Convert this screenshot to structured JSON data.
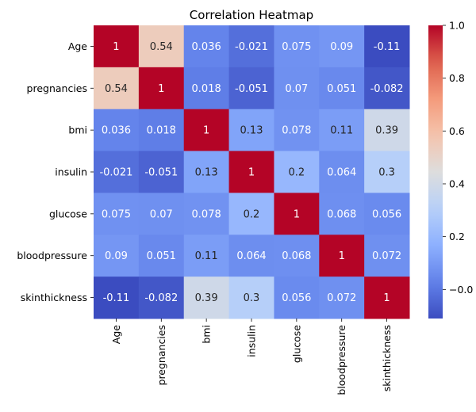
{
  "chart_data": {
    "type": "heatmap",
    "title": "Correlation Heatmap",
    "xlabel": "",
    "ylabel": "",
    "rows": [
      "Age",
      "pregnancies",
      "bmi",
      "insulin",
      "glucose",
      "bloodpressure",
      "skinthickness"
    ],
    "columns": [
      "Age",
      "pregnancies",
      "bmi",
      "insulin",
      "glucose",
      "bloodpressure",
      "skinthickness"
    ],
    "values": [
      [
        1,
        0.54,
        0.036,
        -0.021,
        0.075,
        0.09,
        -0.11
      ],
      [
        0.54,
        1,
        0.018,
        -0.051,
        0.07,
        0.051,
        -0.082
      ],
      [
        0.036,
        0.018,
        1,
        0.13,
        0.078,
        0.11,
        0.39
      ],
      [
        -0.021,
        -0.051,
        0.13,
        1,
        0.2,
        0.064,
        0.3
      ],
      [
        0.075,
        0.07,
        0.078,
        0.2,
        1,
        0.068,
        0.056
      ],
      [
        0.09,
        0.051,
        0.11,
        0.064,
        0.068,
        1,
        0.072
      ],
      [
        -0.11,
        -0.082,
        0.39,
        0.3,
        0.056,
        0.072,
        1
      ]
    ],
    "colormap": "coolwarm",
    "vmin": -0.11,
    "vmax": 1.0,
    "colorbar_ticks": [
      -0.0,
      0.2,
      0.4,
      0.6,
      0.8,
      1.0
    ],
    "colorbar_tick_labels": [
      "−0.0",
      "0.2",
      "0.4",
      "0.6",
      "0.8",
      "1.0"
    ]
  }
}
